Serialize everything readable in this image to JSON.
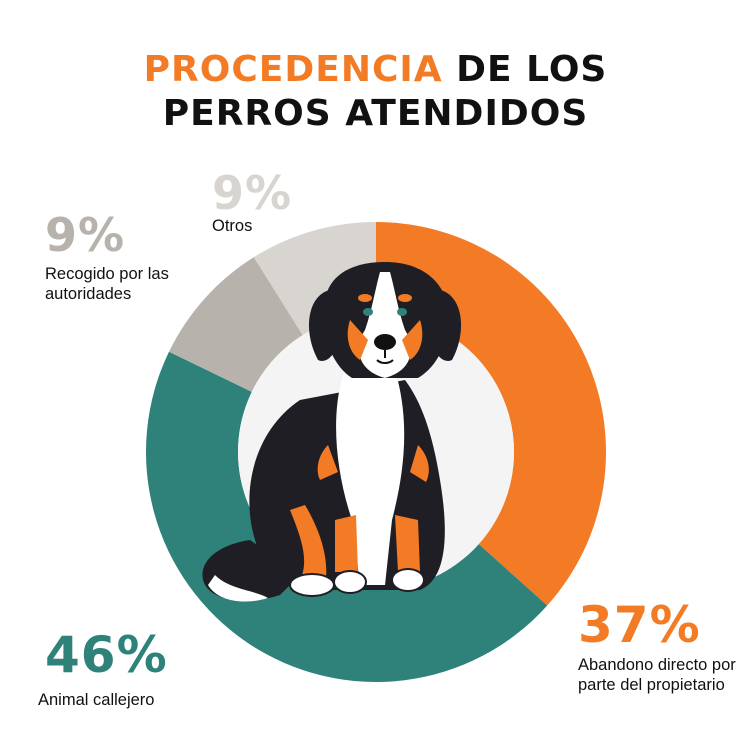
{
  "title": {
    "accent": "PROCEDENCIA",
    "rest_line1": " DE LOS",
    "line2": "PERROS ATENDIDOS"
  },
  "colors": {
    "accent": "#f47b25",
    "text": "#111111"
  },
  "chart_data": {
    "type": "pie",
    "donut": true,
    "start_angle_deg": 0,
    "direction": "clockwise",
    "slices": [
      {
        "percent_label": "37%",
        "value": 37,
        "label": "Abandono directo por parte del propietario",
        "color": "#f47b25"
      },
      {
        "percent_label": "46%",
        "value": 46,
        "label": "Animal callejero",
        "color": "#2e827a"
      },
      {
        "percent_label": "9%",
        "value": 9,
        "label": "Recogido por las autoridades",
        "color": "#b7b2ac"
      },
      {
        "percent_label": "9%",
        "value": 9,
        "label": "Otros",
        "color": "#d8d5d1"
      }
    ]
  }
}
